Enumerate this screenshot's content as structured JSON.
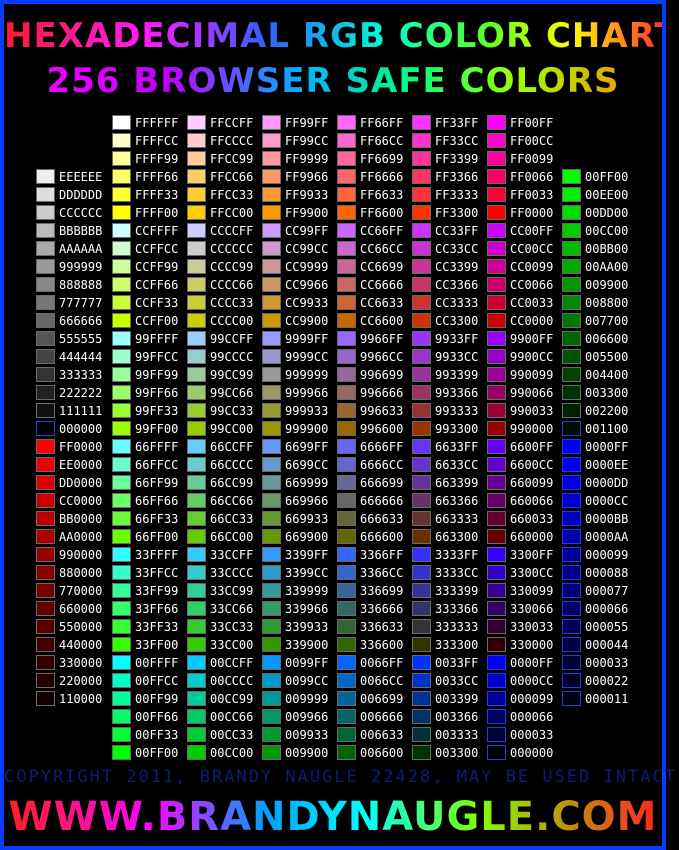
{
  "header": {
    "title": "HEXADECIMAL RGB COLOR CHART",
    "subtitle": "256 BROWSER SAFE COLORS"
  },
  "footer": {
    "copyright": "COPYRIGHT 2011, BRANDY NAUGLE 22428, MAY BE USED INTACT",
    "website": "WWW.BRANDYNAUGLE.COM"
  },
  "columns": [
    {
      "colors": [
        "EEEEEE",
        "DDDDDD",
        "CCCCCC",
        "BBBBBB",
        "AAAAAA",
        "999999",
        "888888",
        "777777",
        "666666",
        "555555",
        "444444",
        "333333",
        "222222",
        "111111",
        "000000",
        "FF0000",
        "EE0000",
        "DD0000",
        "CC0000",
        "BB0000",
        "AA0000",
        "990000",
        "880000",
        "770000",
        "660000",
        "550000",
        "440000",
        "330000",
        "220000",
        "110000"
      ]
    },
    {
      "colors": [
        "FFFFFF",
        "FFFFCC",
        "FFFF99",
        "FFFF66",
        "FFFF33",
        "FFFF00",
        "CCFFFF",
        "CCFFCC",
        "CCFF99",
        "CCFF66",
        "CCFF33",
        "CCFF00",
        "99FFFF",
        "99FFCC",
        "99FF99",
        "99FF66",
        "99FF33",
        "99FF00",
        "66FFFF",
        "66FFCC",
        "66FF99",
        "66FF66",
        "66FF33",
        "66FF00",
        "33FFFF",
        "33FFCC",
        "33FF99",
        "33FF66",
        "33FF33",
        "33FF00",
        "00FFFF",
        "00FFCC",
        "00FF99",
        "00FF66",
        "00FF33",
        "00FF00"
      ]
    },
    {
      "colors": [
        "FFCCFF",
        "FFCCCC",
        "FFCC99",
        "FFCC66",
        "FFCC33",
        "FFCC00",
        "CCCCFF",
        "CCCCCC",
        "CCCC99",
        "CCCC66",
        "CCCC33",
        "CCCC00",
        "99CCFF",
        "99CCCC",
        "99CC99",
        "99CC66",
        "99CC33",
        "99CC00",
        "66CCFF",
        "66CCCC",
        "66CC99",
        "66CC66",
        "66CC33",
        "66CC00",
        "33CCFF",
        "33CCCC",
        "33CC99",
        "33CC66",
        "33CC33",
        "33CC00",
        "00CCFF",
        "00CCCC",
        "00CC99",
        "00CC66",
        "00CC33",
        "00CC00"
      ]
    },
    {
      "colors": [
        "FF99FF",
        "FF99CC",
        "FF9999",
        "FF9966",
        "FF9933",
        "FF9900",
        "CC99FF",
        "CC99CC",
        "CC9999",
        "CC9966",
        "CC9933",
        "CC9900",
        "9999FF",
        "9999CC",
        "999999",
        "999966",
        "999933",
        "999900",
        "6699FF",
        "6699CC",
        "669999",
        "669966",
        "669933",
        "669900",
        "3399FF",
        "3399CC",
        "339999",
        "339966",
        "339933",
        "339900",
        "0099FF",
        "0099CC",
        "009999",
        "009966",
        "009933",
        "009900"
      ]
    },
    {
      "colors": [
        "FF66FF",
        "FF66CC",
        "FF6699",
        "FF6666",
        "FF6633",
        "FF6600",
        "CC66FF",
        "CC66CC",
        "CC6699",
        "CC6666",
        "CC6633",
        "CC6600",
        "9966FF",
        "9966CC",
        "996699",
        "996666",
        "996633",
        "996600",
        "6666FF",
        "6666CC",
        "666699",
        "666666",
        "666633",
        "666600",
        "3366FF",
        "3366CC",
        "336699",
        "336666",
        "336633",
        "336600",
        "0066FF",
        "0066CC",
        "006699",
        "006666",
        "006633",
        "006600"
      ]
    },
    {
      "colors": [
        "FF33FF",
        "FF33CC",
        "FF3399",
        "FF3366",
        "FF3333",
        "FF3300",
        "CC33FF",
        "CC33CC",
        "CC3399",
        "CC3366",
        "CC3333",
        "CC3300",
        "9933FF",
        "9933CC",
        "993399",
        "993366",
        "993333",
        "993300",
        "6633FF",
        "6633CC",
        "663399",
        "663366",
        "663333",
        "663300",
        "3333FF",
        "3333CC",
        "333399",
        "333366",
        "333333",
        "333300",
        "0033FF",
        "0033CC",
        "003399",
        "003366",
        "003333",
        "003300"
      ]
    },
    {
      "colors": [
        "FF00FF",
        "FF00CC",
        "FF0099",
        "FF0066",
        "FF0033",
        "FF0000",
        "CC00FF",
        "CC00CC",
        "CC0099",
        "CC0066",
        "CC0033",
        "CC0000",
        "9900FF",
        "9900CC",
        "990099",
        "990066",
        "990033",
        "990000",
        "6600FF",
        "6600CC",
        "660099",
        "660066",
        "660033",
        "660000",
        "3300FF",
        "3300CC",
        "330099",
        "330066",
        "330033",
        "330000",
        "0000FF",
        "0000CC",
        "000099",
        "000066",
        "000033",
        "000000"
      ]
    },
    {
      "colors": [
        "00FF00",
        "00EE00",
        "00DD00",
        "00CC00",
        "00BB00",
        "00AA00",
        "009900",
        "008800",
        "007700",
        "006600",
        "005500",
        "004400",
        "003300",
        "002200",
        "001100",
        "0000FF",
        "0000EE",
        "0000DD",
        "0000CC",
        "0000BB",
        "0000AA",
        "000099",
        "000088",
        "000077",
        "000066",
        "000055",
        "000044",
        "000033",
        "000022",
        "000011"
      ]
    }
  ]
}
